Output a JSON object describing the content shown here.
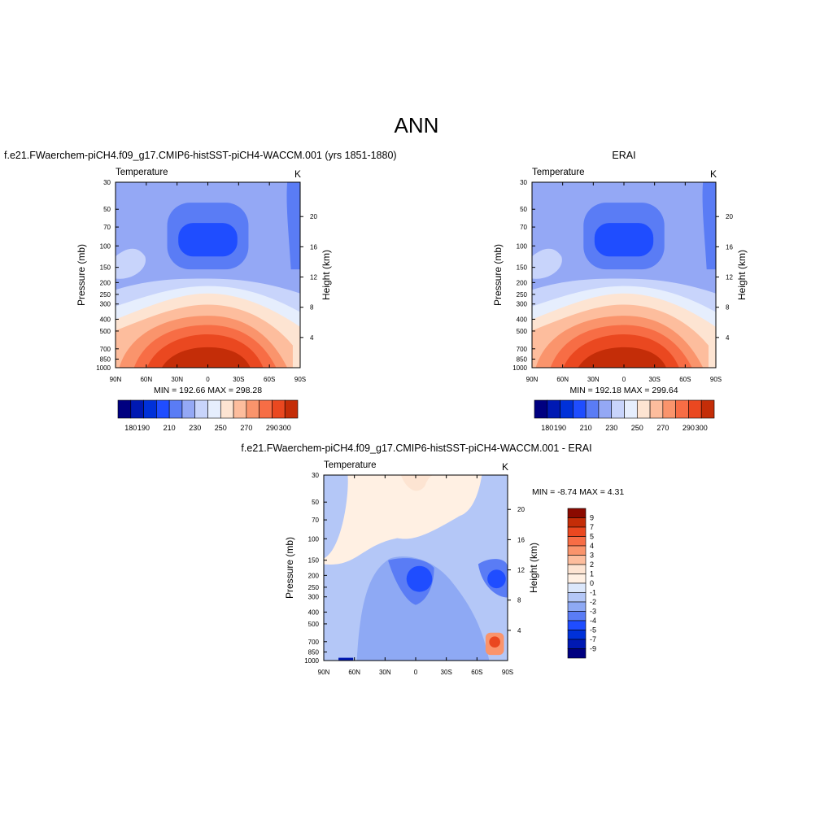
{
  "page": {
    "main_title": "ANN",
    "panel_titles": {
      "model": "f.e21.FWaerchem-piCH4.f09_g17.CMIP6-histSST-piCH4-WACCM.001 (yrs 1851-1880)",
      "obs": "ERAI",
      "diff": "f.e21.FWaerchem-piCH4.f09_g17.CMIP6-histSST-piCH4-WACCM.001 - ERAI"
    }
  },
  "chart_data": [
    {
      "id": "model",
      "type": "heatmap",
      "title": "f.e21.FWaerchem-piCH4.f09_g17.CMIP6-histSST-piCH4-WACCM.001 (yrs 1851-1880)",
      "left_label": "Temperature",
      "units": "K",
      "xlabel": "",
      "ylabel": "Pressure (mb)",
      "y2label": "Height (km)",
      "x_ticks": [
        "90N",
        "60N",
        "30N",
        "0",
        "30S",
        "60S",
        "90S"
      ],
      "y_ticks": [
        30,
        50,
        70,
        100,
        150,
        200,
        250,
        300,
        400,
        500,
        700,
        850,
        1000
      ],
      "y2_ticks": [
        4,
        8,
        12,
        16,
        20
      ],
      "stats": "MIN = 192.66  MAX = 298.28",
      "levels": [
        180,
        190,
        200,
        210,
        220,
        230,
        240,
        250,
        260,
        270,
        280,
        290,
        300
      ],
      "colorbar_labels": [
        "180",
        "190",
        "210",
        "230",
        "250",
        "270",
        "290",
        "300"
      ],
      "colors": [
        "#000080",
        "#0019b3",
        "#0031d9",
        "#1f4dff",
        "#5a7cf5",
        "#94a8f5",
        "#c8d4fb",
        "#e6eefd",
        "#fde4d2",
        "#fdbd9d",
        "#fa946c",
        "#f76d45",
        "#ea4820",
        "#c42d08",
        "#8b0a00"
      ]
    },
    {
      "id": "obs",
      "type": "heatmap",
      "title": "ERAI",
      "left_label": "Temperature",
      "units": "K",
      "xlabel": "",
      "ylabel": "Pressure (mb)",
      "y2label": "Height (km)",
      "x_ticks": [
        "90N",
        "60N",
        "30N",
        "0",
        "30S",
        "60S",
        "90S"
      ],
      "y_ticks": [
        30,
        50,
        70,
        100,
        150,
        200,
        250,
        300,
        400,
        500,
        700,
        850,
        1000
      ],
      "y2_ticks": [
        4,
        8,
        12,
        16,
        20
      ],
      "stats": "MIN = 192.18  MAX = 299.64",
      "levels": [
        180,
        190,
        200,
        210,
        220,
        230,
        240,
        250,
        260,
        270,
        280,
        290,
        300
      ],
      "colorbar_labels": [
        "180",
        "190",
        "210",
        "230",
        "250",
        "270",
        "290",
        "300"
      ],
      "colors": [
        "#000080",
        "#0019b3",
        "#0031d9",
        "#1f4dff",
        "#5a7cf5",
        "#94a8f5",
        "#c8d4fb",
        "#e6eefd",
        "#fde4d2",
        "#fdbd9d",
        "#fa946c",
        "#f76d45",
        "#ea4820",
        "#c42d08",
        "#8b0a00"
      ]
    },
    {
      "id": "diff",
      "type": "heatmap",
      "title": "f.e21.FWaerchem-piCH4.f09_g17.CMIP6-histSST-piCH4-WACCM.001 - ERAI",
      "left_label": "Temperature",
      "units": "K",
      "xlabel": "",
      "ylabel": "Pressure (mb)",
      "y2label": "Height (km)",
      "x_ticks": [
        "90N",
        "60N",
        "30N",
        "0",
        "30S",
        "60S",
        "90S"
      ],
      "y_ticks": [
        30,
        50,
        70,
        100,
        150,
        200,
        250,
        300,
        400,
        500,
        700,
        850,
        1000
      ],
      "y2_ticks": [
        4,
        8,
        12,
        16,
        20
      ],
      "stats": "MIN =  -8.74  MAX =   4.31",
      "levels": [
        9,
        7,
        5,
        4,
        3,
        2,
        1,
        0,
        -1,
        -2,
        -3,
        -4,
        -5,
        -7,
        -9
      ],
      "colorbar_labels": [
        "9",
        "7",
        "5",
        "4",
        "3",
        "2",
        "1",
        "0",
        "-1",
        "-2",
        "-3",
        "-4",
        "-5",
        "-7",
        "-9"
      ],
      "colors": [
        "#8b0a00",
        "#c42d08",
        "#ea4820",
        "#f76d45",
        "#fa946c",
        "#fdbd9d",
        "#fde4d2",
        "#fff0e3",
        "#dbe7fb",
        "#b4c7f7",
        "#8ea9f4",
        "#5a7cf5",
        "#1f4dff",
        "#0031d9",
        "#0019b3",
        "#000080"
      ]
    }
  ]
}
